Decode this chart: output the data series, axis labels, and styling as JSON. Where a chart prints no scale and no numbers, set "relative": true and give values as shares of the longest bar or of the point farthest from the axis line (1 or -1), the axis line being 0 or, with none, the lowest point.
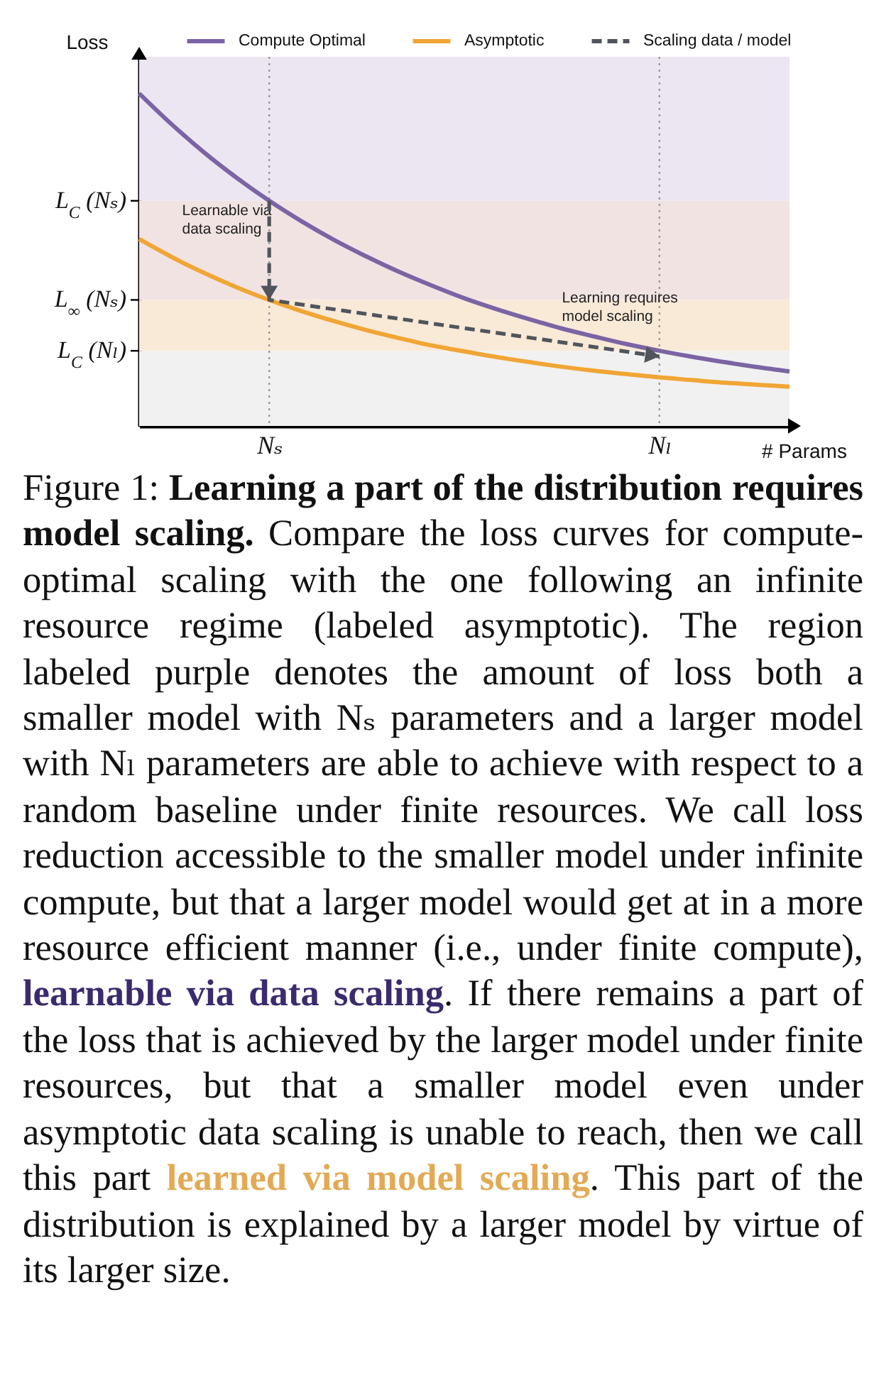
{
  "chart_data": {
    "type": "line",
    "relative": true,
    "ylabel": "Loss",
    "xlabel": "# Params",
    "categories": [
      null,
      null,
      null,
      null,
      "Nₛ",
      null,
      null,
      null,
      null,
      null,
      null,
      null,
      null,
      null,
      null,
      null,
      "Nₗ",
      null,
      null,
      null,
      null
    ],
    "series": [
      {
        "name": "Compute Optimal",
        "color": "#7a64a4",
        "values": [
          1,
          0.907,
          0.822,
          0.746,
          0.677,
          0.615,
          0.559,
          0.509,
          0.463,
          0.422,
          0.384,
          0.351,
          0.321,
          0.293,
          0.269,
          0.246,
          0.226,
          0.208,
          0.192,
          0.177,
          0.164
        ]
      },
      {
        "name": "Asymptotic",
        "color": "#f0a535",
        "values": [
          0.562,
          0.508,
          0.46,
          0.417,
          0.379,
          0.345,
          0.315,
          0.288,
          0.264,
          0.242,
          0.224,
          0.207,
          0.192,
          0.178,
          0.166,
          0.156,
          0.146,
          0.138,
          0.13,
          0.124,
          0.118
        ]
      },
      {
        "name": "Scaling data / model",
        "color": "#50555c",
        "type": "line",
        "line_style": "dashed",
        "x": [
          "Nₛ",
          "Nₛ",
          "Nₗ"
        ],
        "values": [
          0.677,
          0.379,
          0.209
        ]
      }
    ],
    "bands": [
      {
        "axis": "y",
        "from": 0.677,
        "to": 1.11,
        "color": "#ece6f3"
      },
      {
        "axis": "y",
        "from": 0.379,
        "to": 0.677,
        "color": "#f2e3e3",
        "label": "Learnable via data scaling"
      },
      {
        "axis": "y",
        "from": 0.226,
        "to": 0.379,
        "color": "#f9e9d7",
        "label": "Learning requires model scaling"
      },
      {
        "axis": "y",
        "from": 0,
        "to": 0.226,
        "color": "#f1f1f1"
      }
    ],
    "ref_lines": [
      {
        "axis": "x",
        "value": "Nₛ",
        "color": "#9b9b9b",
        "line_style": "dotted"
      },
      {
        "axis": "x",
        "value": "Nₗ",
        "color": "#9b9b9b",
        "line_style": "dotted"
      },
      {
        "axis": "y",
        "value": 0.677,
        "label": "L$_{C}$ (Nₛ)",
        "color": "#000000"
      },
      {
        "axis": "y",
        "value": 0.379,
        "label": "L$_{∞}$ (Nₛ)",
        "color": "#000000"
      },
      {
        "axis": "y",
        "value": 0.226,
        "label": "L$_{C}$ (Nₗ)",
        "color": "#000000"
      }
    ],
    "legend": "top",
    "annotations": [
      "Figure 1:",
      "Learning a part of the distribution requires model scaling.",
      "Compare the loss curves for compute-optimal scaling with the one following an infinite resource regime (labeled asymptotic). The region labeled purple denotes the amount of loss both a smaller model with Nₛ parameters and a larger model with Nₗ parameters are able to achieve with respect to a random baseline under finite resources. We call loss reduction accessible to the smaller model under infinite compute, but that a larger model would get at in a more resource efficient manner (i.e., under finite compute),",
      "learnable via data scaling",
      ". If there remains a part of the loss that is achieved by the larger model under finite resources, but that a smaller model even under asymptotic data scaling is unable to reach, then we call this part",
      "learned via model scaling",
      ". This part of the distribution is explained by a larger model by virtue of its larger size."
    ]
  }
}
